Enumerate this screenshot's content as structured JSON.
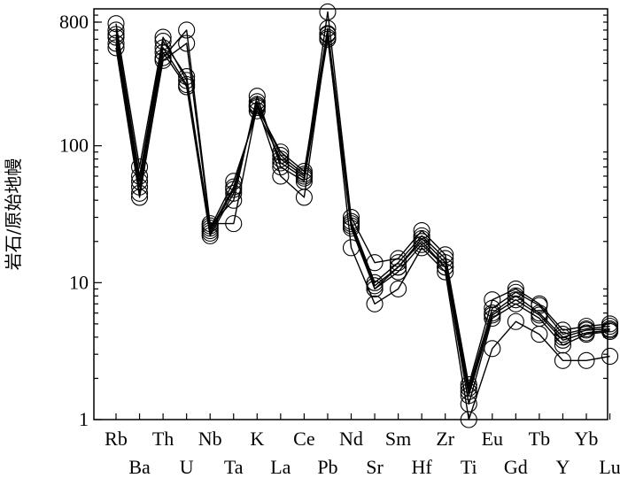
{
  "chart_data": {
    "type": "line",
    "title": "",
    "ylabel": "岩石/原始地幔",
    "xlabel": "",
    "yscale": "log",
    "ylim": [
      1,
      1000
    ],
    "yticks": [
      1,
      10,
      100,
      800
    ],
    "ytick_labels": [
      "1",
      "10",
      "100",
      "800"
    ],
    "categories": [
      "Rb",
      "Ba",
      "Th",
      "U",
      "Nb",
      "Ta",
      "K",
      "La",
      "Ce",
      "Pb",
      "Nd",
      "Sr",
      "Sm",
      "Hf",
      "Zr",
      "Ti",
      "Eu",
      "Gd",
      "Tb",
      "Y",
      "Yb",
      "Lu"
    ],
    "grid": false,
    "marker": "open-circle",
    "series": [
      {
        "values": [
          780,
          70,
          620,
          300,
          25,
          55,
          180,
          80,
          60,
          950,
          30,
          14,
          15,
          24,
          16,
          1.8,
          7.5,
          9,
          7,
          4.5,
          4.8,
          5
        ]
      },
      {
        "values": [
          700,
          60,
          580,
          320,
          24,
          50,
          190,
          90,
          65,
          720,
          28,
          10,
          14,
          22,
          15,
          1.7,
          6.5,
          8.5,
          6.8,
          4.2,
          4.6,
          4.8
        ]
      },
      {
        "values": [
          650,
          55,
          520,
          280,
          23,
          48,
          200,
          85,
          62,
          650,
          27,
          9.5,
          13,
          21,
          14,
          1.6,
          6,
          8,
          6,
          4,
          4.5,
          4.6
        ]
      },
      {
        "values": [
          620,
          50,
          480,
          270,
          22,
          45,
          210,
          75,
          58,
          620,
          26,
          9,
          13,
          20,
          13,
          1.5,
          5.8,
          7.5,
          5.8,
          3.8,
          4.3,
          4.5
        ]
      },
      {
        "values": [
          560,
          45,
          420,
          560,
          26,
          40,
          230,
          70,
          55,
          600,
          25,
          9,
          12,
          19,
          13,
          1.3,
          5.5,
          7,
          5.5,
          3.5,
          4.2,
          4.4
        ]
      },
      {
        "values": [
          520,
          42,
          440,
          700,
          27,
          27,
          195,
          60,
          42,
          660,
          18,
          7,
          9,
          18,
          12,
          1,
          3.3,
          5.2,
          4.2,
          2.7,
          2.7,
          2.9
        ]
      }
    ]
  }
}
